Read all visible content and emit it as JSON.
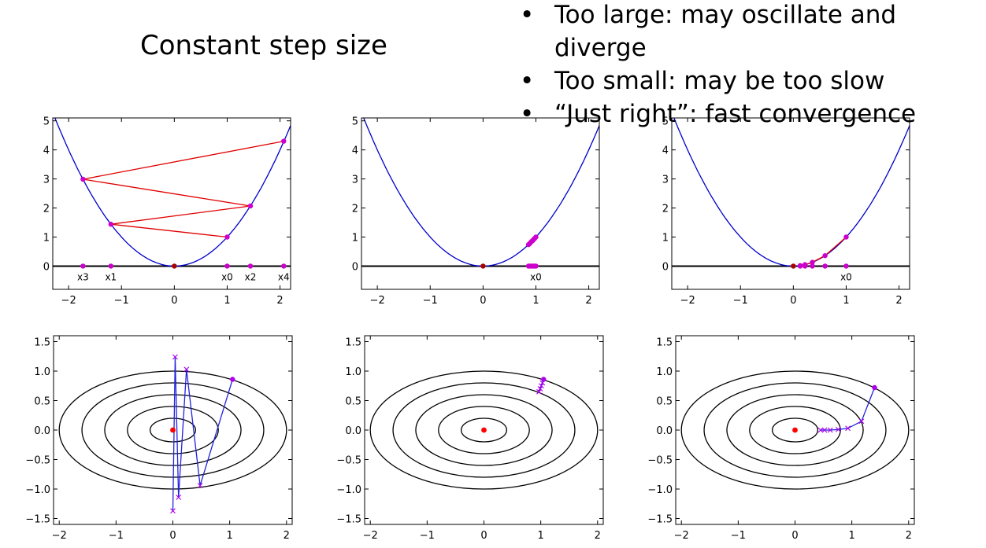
{
  "heading": {
    "title": "Constant step size",
    "bullets": [
      "Too large: may oscillate and diverge",
      "Too small: may be too slow",
      "“Just right”: fast convergence"
    ]
  },
  "chart_data": [
    {
      "type": "line",
      "kind": "parabola",
      "curve": "y = x^2",
      "xlim": [
        -2.3,
        2.2
      ],
      "ylim": [
        -0.8,
        5.1
      ],
      "xticks": [
        -2,
        -1,
        0,
        1,
        2
      ],
      "yticks": [
        0,
        1,
        2,
        3,
        4,
        5
      ],
      "minimum": {
        "x": 0,
        "y": 0
      },
      "iterates": [
        [
          1.0,
          1.0
        ],
        [
          -1.2,
          1.44
        ],
        [
          1.44,
          2.07
        ],
        [
          -1.728,
          2.99
        ],
        [
          2.07,
          4.3
        ]
      ],
      "iterate_labels": [
        {
          "x": 1.0,
          "text": "x0"
        },
        {
          "x": -1.2,
          "text": "x1"
        },
        {
          "x": 1.44,
          "text": "x2"
        },
        {
          "x": -1.728,
          "text": "x3"
        },
        {
          "x": 2.07,
          "text": "x4"
        }
      ],
      "colors": {
        "curve": "#0000cc",
        "path": "#e00000",
        "points": "#cc00cc",
        "minimum": "#aa0000"
      }
    },
    {
      "type": "line",
      "kind": "parabola",
      "curve": "y = x^2",
      "xlim": [
        -2.3,
        2.2
      ],
      "ylim": [
        -0.8,
        5.1
      ],
      "xticks": [
        -2,
        -1,
        0,
        1,
        2
      ],
      "yticks": [
        0,
        1,
        2,
        3,
        4,
        5
      ],
      "minimum": {
        "x": 0,
        "y": 0
      },
      "iterates": [
        [
          1.0,
          1.0
        ],
        [
          0.98,
          0.96
        ],
        [
          0.96,
          0.92
        ],
        [
          0.94,
          0.88
        ],
        [
          0.92,
          0.85
        ],
        [
          0.9,
          0.81
        ],
        [
          0.88,
          0.77
        ],
        [
          0.86,
          0.74
        ]
      ],
      "iterate_labels": [
        {
          "x": 1.0,
          "text": "x0"
        }
      ],
      "colors": {
        "curve": "#0000cc",
        "path": "#e00000",
        "points": "#cc00cc",
        "minimum": "#aa0000"
      }
    },
    {
      "type": "line",
      "kind": "parabola",
      "curve": "y = x^2",
      "xlim": [
        -2.3,
        2.2
      ],
      "ylim": [
        -0.8,
        5.1
      ],
      "xticks": [
        -2,
        -1,
        0,
        1,
        2
      ],
      "yticks": [
        0,
        1,
        2,
        3,
        4,
        5
      ],
      "minimum": {
        "x": 0,
        "y": 0
      },
      "iterates": [
        [
          1.0,
          1.0
        ],
        [
          0.6,
          0.36
        ],
        [
          0.36,
          0.13
        ],
        [
          0.22,
          0.05
        ],
        [
          0.13,
          0.017
        ]
      ],
      "iterate_labels": [
        {
          "x": 1.0,
          "text": "x0"
        }
      ],
      "colors": {
        "curve": "#0000cc",
        "path": "#e00000",
        "points": "#cc00cc",
        "minimum": "#aa0000"
      }
    },
    {
      "type": "line",
      "kind": "contour",
      "contour_levels": [
        0.2,
        0.4,
        0.6,
        0.8,
        1.0
      ],
      "ellipse_axes_at_level_1": {
        "a": 2.0,
        "b": 1.0
      },
      "xlim": [
        -2.1,
        2.1
      ],
      "ylim": [
        -1.6,
        1.6
      ],
      "xticks": [
        -2,
        -1,
        0,
        1,
        2
      ],
      "yticks": [
        -1.5,
        -1.0,
        -0.5,
        0.0,
        0.5,
        1.0,
        1.5
      ],
      "minimum": {
        "x": 0,
        "y": 0
      },
      "path": [
        [
          1.05,
          0.86
        ],
        [
          0.48,
          -0.94
        ],
        [
          0.24,
          1.03
        ],
        [
          0.1,
          -1.14
        ],
        [
          0.04,
          1.24
        ],
        [
          0.0,
          -1.37
        ]
      ],
      "colors": {
        "path": "#2222dd",
        "markers": "#aa00ee",
        "contours": "#000000",
        "minimum": "#ff0000"
      }
    },
    {
      "type": "line",
      "kind": "contour",
      "contour_levels": [
        0.2,
        0.4,
        0.6,
        0.8,
        1.0
      ],
      "ellipse_axes_at_level_1": {
        "a": 2.0,
        "b": 1.0
      },
      "xlim": [
        -2.1,
        2.1
      ],
      "ylim": [
        -1.6,
        1.6
      ],
      "xticks": [
        -2,
        -1,
        0,
        1,
        2
      ],
      "yticks": [
        -1.5,
        -1.0,
        -0.5,
        0.0,
        0.5,
        1.0,
        1.5
      ],
      "minimum": {
        "x": 0,
        "y": 0
      },
      "path": [
        [
          1.05,
          0.86
        ],
        [
          1.03,
          0.8
        ],
        [
          1.01,
          0.75
        ],
        [
          0.99,
          0.7
        ],
        [
          0.97,
          0.65
        ]
      ],
      "colors": {
        "path": "#2222dd",
        "markers": "#aa00ee",
        "contours": "#000000",
        "minimum": "#ff0000"
      }
    },
    {
      "type": "line",
      "kind": "contour",
      "contour_levels": [
        0.2,
        0.4,
        0.6,
        0.8,
        1.0
      ],
      "ellipse_axes_at_level_1": {
        "a": 2.0,
        "b": 1.0
      },
      "xlim": [
        -2.1,
        2.1
      ],
      "ylim": [
        -1.6,
        1.6
      ],
      "xticks": [
        -2,
        -1,
        0,
        1,
        2
      ],
      "yticks": [
        -1.5,
        -1.0,
        -0.5,
        0.0,
        0.5,
        1.0,
        1.5
      ],
      "minimum": {
        "x": 0,
        "y": 0
      },
      "path": [
        [
          1.4,
          0.72
        ],
        [
          1.17,
          0.15
        ],
        [
          0.93,
          0.03
        ],
        [
          0.76,
          0.01
        ],
        [
          0.62,
          0.0
        ],
        [
          0.52,
          0.0
        ],
        [
          0.45,
          0.0
        ]
      ],
      "colors": {
        "path": "#2222dd",
        "markers": "#aa00ee",
        "contours": "#000000",
        "minimum": "#ff0000"
      }
    }
  ]
}
